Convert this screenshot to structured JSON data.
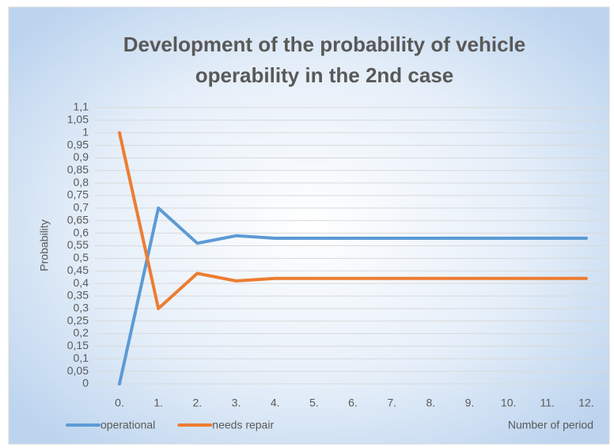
{
  "chart_data": {
    "type": "line",
    "title": [
      "Development of the probability of vehicle",
      "operability in the 2nd case"
    ],
    "y_label": "Probability",
    "x_label": "Number of period",
    "categories": [
      "0.",
      "1.",
      "2.",
      "3.",
      "4.",
      "5.",
      "6.",
      "7.",
      "8.",
      "9.",
      "10.",
      "11.",
      "12."
    ],
    "series": [
      {
        "name": "operational",
        "color": "#5b9bd5",
        "values": [
          0,
          0.7,
          0.56,
          0.59,
          0.58,
          0.58,
          0.58,
          0.58,
          0.58,
          0.58,
          0.58,
          0.58,
          0.58
        ]
      },
      {
        "name": "needs repair",
        "color": "#ed7d31",
        "values": [
          1,
          0.3,
          0.44,
          0.41,
          0.42,
          0.42,
          0.42,
          0.42,
          0.42,
          0.42,
          0.42,
          0.42,
          0.42
        ]
      }
    ],
    "ylim": [
      0,
      1.1
    ],
    "yticks": [
      0,
      {
        "value": 0.05,
        "label": "0,05"
      },
      {
        "value": 0.1,
        "label": "0,1"
      },
      {
        "value": 0.15,
        "label": "0,15"
      },
      {
        "value": 0.2,
        "label": "0,2"
      },
      {
        "value": 0.25,
        "label": "0,25"
      },
      {
        "value": 0.3,
        "label": "0,3"
      },
      {
        "value": 0.35,
        "label": "0,35"
      },
      {
        "value": 0.4,
        "label": "0,4"
      },
      {
        "value": 0.45,
        "label": "0,45"
      },
      {
        "value": 0.5,
        "label": "0,5"
      },
      {
        "value": 0.55,
        "label": "0,55"
      },
      {
        "value": 0.6,
        "label": "0,6"
      },
      {
        "value": 0.65,
        "label": "0,65"
      },
      {
        "value": 0.7,
        "label": "0,7"
      },
      {
        "value": 0.75,
        "label": "0,75"
      },
      {
        "value": 0.8,
        "label": "0,8"
      },
      {
        "value": 0.85,
        "label": "0,85"
      },
      {
        "value": 0.9,
        "label": "0,9"
      },
      {
        "value": 0.95,
        "label": "0,95"
      },
      1,
      {
        "value": 1.05,
        "label": "1,05"
      },
      {
        "value": 1.1,
        "label": "1,1"
      }
    ],
    "grid": true,
    "legend": "bottom-left"
  }
}
